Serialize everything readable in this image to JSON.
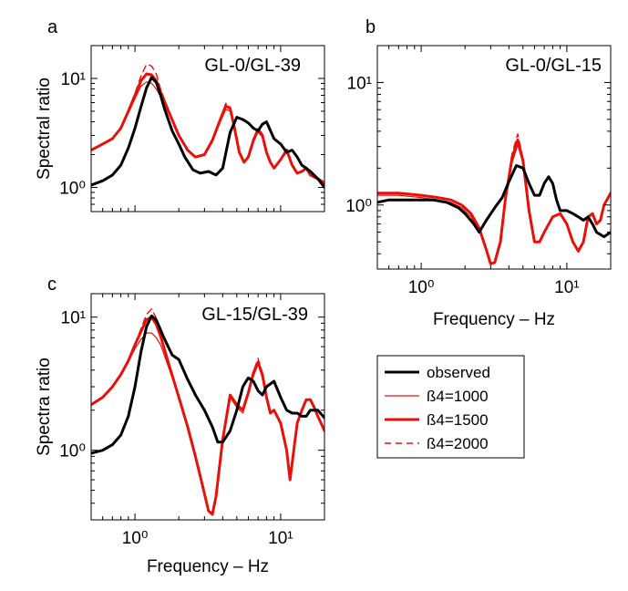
{
  "legend": {
    "items": [
      {
        "label": "observed",
        "color": "#000000",
        "width": 3,
        "dash": ""
      },
      {
        "label": "ß4=1000",
        "color": "#e8100b",
        "width": 1.2,
        "dash": ""
      },
      {
        "label": "ß4=1500",
        "color": "#e8100b",
        "width": 3,
        "dash": ""
      },
      {
        "label": "ß4=2000",
        "color": "#e8100b",
        "width": 1.4,
        "dash": "7,5"
      }
    ]
  },
  "chart_data": [
    {
      "type": "line",
      "panel": "a",
      "title": "GL-0/GL-39",
      "xlabel": "",
      "ylabel": "Spectral ratio",
      "xscale": "log",
      "yscale": "log",
      "xlim": [
        0.5,
        20
      ],
      "ylim": [
        0.6,
        20
      ],
      "xticks": [],
      "yticks": [
        {
          "value": 1,
          "label": "10⁰"
        },
        {
          "value": 10,
          "label": "10¹"
        }
      ],
      "series": [
        {
          "name": "observed",
          "x": [
            0.5,
            0.6,
            0.7,
            0.8,
            0.9,
            1.0,
            1.1,
            1.2,
            1.3,
            1.4,
            1.5,
            1.6,
            1.8,
            2.0,
            2.2,
            2.5,
            2.8,
            3.2,
            3.6,
            4.0,
            4.5,
            5.0,
            5.5,
            6.0,
            6.5,
            7.0,
            7.5,
            8.0,
            9.0,
            10,
            11,
            12,
            13,
            14,
            15,
            16,
            18,
            20
          ],
          "y": [
            1.05,
            1.15,
            1.3,
            1.6,
            2.3,
            3.5,
            5.5,
            8.2,
            10.2,
            9.2,
            7.0,
            5.2,
            3.3,
            2.5,
            1.9,
            1.45,
            1.35,
            1.4,
            1.3,
            1.5,
            3.2,
            4.4,
            4.2,
            3.9,
            3.5,
            3.3,
            3.8,
            4.0,
            2.8,
            2.5,
            2.1,
            2.2,
            1.9,
            1.6,
            1.5,
            1.4,
            1.2,
            1.0
          ]
        },
        {
          "name": "ß4=1000",
          "x": [
            0.5,
            0.6,
            0.7,
            0.8,
            0.9,
            1.0,
            1.1,
            1.2,
            1.3,
            1.4,
            1.5,
            1.7,
            2.0,
            2.3,
            2.6,
            3.0,
            3.4,
            3.8,
            4.2,
            4.5,
            4.8,
            5.2,
            5.6,
            6.0,
            6.5,
            7.0,
            7.5,
            8.0,
            8.5,
            9.0,
            10,
            11,
            12,
            13,
            14,
            15,
            16,
            18,
            20
          ],
          "y": [
            2.2,
            2.5,
            2.8,
            3.5,
            4.8,
            6.5,
            8.5,
            9.3,
            9.0,
            8.0,
            6.8,
            4.8,
            3.0,
            2.2,
            1.9,
            2.0,
            2.6,
            3.8,
            5.2,
            5.0,
            3.5,
            2.1,
            1.7,
            1.9,
            2.6,
            3.2,
            2.9,
            2.1,
            1.7,
            1.5,
            1.8,
            2.1,
            1.6,
            1.35,
            1.4,
            1.5,
            1.3,
            1.2,
            1.1
          ]
        },
        {
          "name": "ß4=1500",
          "x": [
            0.5,
            0.6,
            0.7,
            0.8,
            0.9,
            1.0,
            1.1,
            1.2,
            1.3,
            1.4,
            1.5,
            1.7,
            2.0,
            2.3,
            2.6,
            3.0,
            3.4,
            3.8,
            4.2,
            4.5,
            4.8,
            5.2,
            5.6,
            6.0,
            6.5,
            7.0,
            7.5,
            8.0,
            8.5,
            9.0,
            10,
            11,
            12,
            13,
            14,
            15,
            16,
            18,
            20
          ],
          "y": [
            2.2,
            2.5,
            2.8,
            3.5,
            5.0,
            7.0,
            9.5,
            11.0,
            10.8,
            9.5,
            7.5,
            5.0,
            3.0,
            2.2,
            1.9,
            2.0,
            2.7,
            4.0,
            5.6,
            5.3,
            3.6,
            2.1,
            1.7,
            1.9,
            2.7,
            3.4,
            3.0,
            2.1,
            1.7,
            1.5,
            1.8,
            2.2,
            1.6,
            1.35,
            1.4,
            1.5,
            1.3,
            1.2,
            1.1
          ]
        },
        {
          "name": "ß4=2000",
          "x": [
            0.5,
            0.6,
            0.7,
            0.8,
            0.9,
            1.0,
            1.1,
            1.2,
            1.3,
            1.4,
            1.5,
            1.7,
            2.0,
            2.3,
            2.6,
            3.0,
            3.4,
            3.8,
            4.2,
            4.5,
            4.8,
            5.2,
            5.6,
            6.0,
            6.5,
            7.0,
            7.5,
            8.0,
            8.5,
            9.0,
            10,
            11,
            12,
            13,
            14,
            15,
            16,
            18,
            20
          ],
          "y": [
            2.2,
            2.5,
            2.8,
            3.5,
            5.1,
            7.3,
            10.5,
            13.5,
            13.0,
            11.0,
            8.0,
            5.1,
            3.0,
            2.2,
            1.9,
            2.0,
            2.7,
            4.1,
            5.9,
            5.5,
            3.7,
            2.1,
            1.7,
            1.9,
            2.8,
            3.5,
            3.1,
            2.1,
            1.7,
            1.5,
            1.8,
            2.3,
            1.6,
            1.35,
            1.4,
            1.5,
            1.3,
            1.2,
            1.1
          ]
        }
      ]
    },
    {
      "type": "line",
      "panel": "b",
      "title": "GL-0/GL-15",
      "xlabel": "Frequency – Hz",
      "ylabel": "",
      "xscale": "log",
      "yscale": "log",
      "xlim": [
        0.5,
        20
      ],
      "ylim": [
        0.3,
        20
      ],
      "xticks": [
        {
          "value": 1,
          "label": "10⁰"
        },
        {
          "value": 10,
          "label": "10¹"
        }
      ],
      "yticks": [
        {
          "value": 1,
          "label": "10⁰"
        },
        {
          "value": 10,
          "label": "10¹"
        }
      ],
      "series": [
        {
          "name": "observed",
          "x": [
            0.5,
            0.6,
            0.8,
            1.0,
            1.2,
            1.5,
            1.8,
            2.0,
            2.3,
            2.5,
            2.8,
            3.2,
            3.6,
            4.0,
            4.5,
            5.0,
            5.5,
            6.0,
            6.5,
            7.0,
            7.5,
            8.0,
            8.5,
            9.0,
            10,
            11,
            12,
            13,
            14,
            15,
            16,
            18,
            20
          ],
          "y": [
            1.05,
            1.1,
            1.1,
            1.1,
            1.1,
            1.05,
            0.95,
            0.85,
            0.7,
            0.6,
            0.75,
            0.95,
            1.15,
            1.55,
            2.1,
            2.0,
            1.5,
            1.2,
            1.2,
            1.5,
            1.7,
            1.5,
            1.1,
            0.9,
            0.9,
            0.85,
            0.8,
            0.75,
            0.8,
            0.7,
            0.6,
            0.55,
            0.6
          ]
        },
        {
          "name": "ß4=1000",
          "x": [
            0.5,
            0.7,
            1.0,
            1.3,
            1.6,
            1.9,
            2.2,
            2.5,
            2.8,
            3.0,
            3.2,
            3.5,
            3.8,
            4.2,
            4.6,
            5.0,
            5.5,
            6.0,
            6.5,
            7.0,
            8.0,
            9.0,
            10,
            11,
            12,
            13,
            14,
            15,
            16,
            17,
            18,
            20
          ],
          "y": [
            1.2,
            1.2,
            1.15,
            1.1,
            1.05,
            0.95,
            0.8,
            0.62,
            0.42,
            0.33,
            0.34,
            0.5,
            1.1,
            2.2,
            3.1,
            2.2,
            0.9,
            0.5,
            0.5,
            0.6,
            0.8,
            0.85,
            0.7,
            0.5,
            0.42,
            0.5,
            0.8,
            0.85,
            0.7,
            0.75,
            1.0,
            1.25
          ]
        },
        {
          "name": "ß4=1500",
          "x": [
            0.5,
            0.7,
            1.0,
            1.3,
            1.6,
            1.9,
            2.2,
            2.5,
            2.8,
            3.0,
            3.2,
            3.5,
            3.8,
            4.2,
            4.6,
            5.0,
            5.5,
            6.0,
            6.5,
            7.0,
            8.0,
            9.0,
            10,
            11,
            12,
            13,
            14,
            15,
            16,
            17,
            18,
            20
          ],
          "y": [
            1.25,
            1.25,
            1.2,
            1.15,
            1.1,
            1.0,
            0.85,
            0.65,
            0.43,
            0.33,
            0.34,
            0.5,
            1.15,
            2.4,
            3.4,
            2.3,
            0.9,
            0.5,
            0.5,
            0.6,
            0.8,
            0.85,
            0.7,
            0.5,
            0.42,
            0.5,
            0.8,
            0.85,
            0.7,
            0.75,
            1.0,
            1.25
          ]
        },
        {
          "name": "ß4=2000",
          "x": [
            0.5,
            0.7,
            1.0,
            1.3,
            1.6,
            1.9,
            2.2,
            2.5,
            2.8,
            3.0,
            3.2,
            3.5,
            3.8,
            4.2,
            4.6,
            5.0,
            5.5,
            6.0,
            6.5,
            7.0,
            8.0,
            9.0,
            10,
            11,
            12,
            13,
            14,
            15,
            16,
            17,
            18,
            20
          ],
          "y": [
            1.25,
            1.25,
            1.2,
            1.15,
            1.1,
            1.0,
            0.85,
            0.65,
            0.43,
            0.33,
            0.34,
            0.5,
            1.2,
            2.6,
            3.8,
            2.4,
            0.9,
            0.5,
            0.5,
            0.6,
            0.8,
            0.85,
            0.7,
            0.5,
            0.42,
            0.5,
            0.8,
            0.85,
            0.7,
            0.75,
            1.0,
            1.25
          ]
        }
      ]
    },
    {
      "type": "line",
      "panel": "c",
      "title": "GL-15/GL-39",
      "xlabel": "Frequency – Hz",
      "ylabel": "Spectra ratio",
      "xscale": "log",
      "yscale": "log",
      "xlim": [
        0.5,
        20
      ],
      "ylim": [
        0.3,
        15
      ],
      "xticks": [
        {
          "value": 1,
          "label": "10⁰"
        },
        {
          "value": 10,
          "label": "10¹"
        }
      ],
      "yticks": [
        {
          "value": 1,
          "label": "10⁰"
        },
        {
          "value": 10,
          "label": "10¹"
        }
      ],
      "series": [
        {
          "name": "observed",
          "x": [
            0.5,
            0.6,
            0.7,
            0.8,
            0.9,
            1.0,
            1.1,
            1.2,
            1.3,
            1.4,
            1.5,
            1.6,
            1.8,
            2.0,
            2.3,
            2.6,
            3.0,
            3.4,
            3.7,
            4.0,
            4.5,
            5.0,
            5.5,
            6.0,
            6.5,
            7.0,
            7.5,
            8.0,
            9.0,
            10,
            11,
            12,
            13,
            14,
            15,
            16,
            18,
            20
          ],
          "y": [
            0.95,
            1.0,
            1.1,
            1.3,
            1.8,
            3.0,
            5.5,
            8.5,
            10.2,
            9.5,
            8.0,
            6.8,
            5.2,
            4.8,
            3.4,
            2.6,
            2.0,
            1.5,
            1.15,
            1.15,
            1.4,
            2.0,
            3.0,
            3.5,
            3.3,
            2.8,
            2.6,
            3.0,
            3.3,
            2.5,
            2.0,
            1.9,
            1.9,
            1.8,
            1.8,
            2.0,
            2.0,
            1.75
          ]
        },
        {
          "name": "ß4=1000",
          "x": [
            0.5,
            0.6,
            0.7,
            0.8,
            0.9,
            1.0,
            1.1,
            1.2,
            1.3,
            1.4,
            1.5,
            1.7,
            2.0,
            2.3,
            2.6,
            2.9,
            3.2,
            3.4,
            3.6,
            4.0,
            4.5,
            5.0,
            5.5,
            6.0,
            6.5,
            7.0,
            7.5,
            8.0,
            8.5,
            9.0,
            10,
            11,
            11.6,
            12,
            13,
            14,
            15,
            16,
            17,
            18,
            20
          ],
          "y": [
            2.2,
            2.5,
            3.0,
            3.7,
            4.6,
            5.8,
            6.8,
            7.6,
            7.6,
            7.0,
            6.2,
            4.2,
            2.5,
            1.5,
            0.9,
            0.55,
            0.35,
            0.34,
            0.45,
            1.2,
            2.5,
            2.1,
            1.9,
            2.6,
            3.6,
            4.4,
            3.5,
            2.4,
            1.9,
            2.0,
            1.6,
            1.0,
            0.6,
            0.8,
            1.6,
            2.0,
            2.4,
            2.4,
            2.1,
            1.8,
            1.4
          ]
        },
        {
          "name": "ß4=1500",
          "x": [
            0.5,
            0.6,
            0.7,
            0.8,
            0.9,
            1.0,
            1.1,
            1.2,
            1.3,
            1.4,
            1.5,
            1.7,
            2.0,
            2.3,
            2.6,
            2.9,
            3.2,
            3.4,
            3.6,
            4.0,
            4.5,
            5.0,
            5.5,
            6.0,
            6.5,
            7.0,
            7.5,
            8.0,
            8.5,
            9.0,
            10,
            11,
            11.6,
            12,
            13,
            14,
            15,
            16,
            17,
            18,
            20
          ],
          "y": [
            2.2,
            2.5,
            3.0,
            3.7,
            4.7,
            6.2,
            7.8,
            9.6,
            10.0,
            8.8,
            7.2,
            4.5,
            2.5,
            1.5,
            0.9,
            0.55,
            0.35,
            0.33,
            0.45,
            1.2,
            2.6,
            2.2,
            2.0,
            2.7,
            3.8,
            4.6,
            3.7,
            2.5,
            1.9,
            2.0,
            1.6,
            1.0,
            0.6,
            0.8,
            1.6,
            2.0,
            2.4,
            2.4,
            2.1,
            1.8,
            1.4
          ]
        },
        {
          "name": "ß4=2000",
          "x": [
            0.5,
            0.6,
            0.7,
            0.8,
            0.9,
            1.0,
            1.1,
            1.2,
            1.3,
            1.4,
            1.5,
            1.7,
            2.0,
            2.3,
            2.6,
            2.9,
            3.2,
            3.4,
            3.6,
            4.0,
            4.5,
            5.0,
            5.5,
            6.0,
            6.5,
            7.0,
            7.5,
            8.0,
            8.5,
            9.0,
            10,
            11,
            11.6,
            12,
            13,
            14,
            15,
            16,
            17,
            18,
            20
          ],
          "y": [
            2.2,
            2.5,
            3.0,
            3.7,
            4.7,
            6.3,
            8.2,
            10.5,
            11.5,
            9.8,
            7.6,
            4.6,
            2.5,
            1.5,
            0.9,
            0.55,
            0.35,
            0.33,
            0.45,
            1.2,
            2.6,
            2.2,
            2.0,
            2.7,
            3.9,
            4.9,
            3.8,
            2.5,
            1.9,
            2.0,
            1.6,
            1.0,
            0.6,
            0.8,
            1.6,
            2.0,
            2.4,
            2.4,
            2.1,
            1.8,
            1.4
          ]
        }
      ]
    }
  ]
}
